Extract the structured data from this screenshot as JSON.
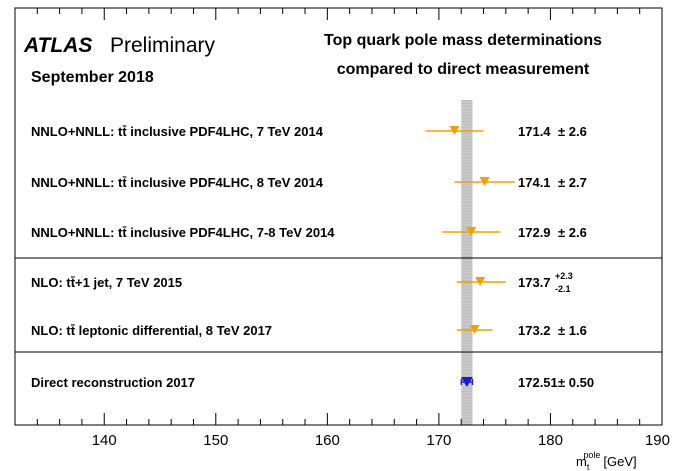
{
  "header": {
    "experiment": "ATLAS",
    "status": "Preliminary",
    "date": "September 2018",
    "title_line1": "Top quark pole mass determinations",
    "title_line2": "compared to direct measurement"
  },
  "chart_data": {
    "type": "scatter",
    "orientation": "horizontal-error-bars",
    "xlabel": {
      "symbol": "m",
      "subscript": "t",
      "superscript": "pole",
      "unit": "[GeV]"
    },
    "xlim": [
      132,
      190
    ],
    "x_ticks": [
      140,
      150,
      160,
      170,
      180,
      190
    ],
    "reference_band": {
      "center": 172.51,
      "half_width": 0.5,
      "color": "#bdbdbd"
    },
    "group_separators_after": [
      2,
      4
    ],
    "colors": {
      "pole": "#f5a000",
      "direct": "#1a1adc"
    },
    "measurements": [
      {
        "label": "NNLO+NNLL: tt̄ inclusive PDF4LHC, 7 TeV 2014",
        "value": 171.4,
        "err_up": 2.6,
        "err_down": 2.6,
        "value_text": "171.4",
        "err_text": "± 2.6",
        "kind": "pole"
      },
      {
        "label": "NNLO+NNLL: tt̄ inclusive PDF4LHC, 8 TeV 2014",
        "value": 174.1,
        "err_up": 2.7,
        "err_down": 2.7,
        "value_text": "174.1",
        "err_text": "± 2.7",
        "kind": "pole"
      },
      {
        "label": "NNLO+NNLL: tt̄ inclusive PDF4LHC, 7-8 TeV 2014",
        "value": 172.9,
        "err_up": 2.6,
        "err_down": 2.6,
        "value_text": "172.9",
        "err_text": "± 2.6",
        "kind": "pole"
      },
      {
        "label": "NLO: tt̄+1 jet, 7 TeV 2015",
        "value": 173.7,
        "err_up": 2.3,
        "err_down": 2.1,
        "value_text": "173.7",
        "err_up_text": "+2.3",
        "err_down_text": "-2.1",
        "kind": "pole"
      },
      {
        "label": "NLO: tt̄ leptonic differential, 8 TeV 2017",
        "value": 173.2,
        "err_up": 1.6,
        "err_down": 1.6,
        "value_text": "173.2",
        "err_text": "± 1.6",
        "kind": "pole"
      },
      {
        "label": "Direct reconstruction 2017",
        "value": 172.51,
        "err_up": 0.5,
        "err_down": 0.5,
        "value_text": "172.51",
        "err_text": "± 0.50",
        "kind": "direct"
      }
    ]
  }
}
